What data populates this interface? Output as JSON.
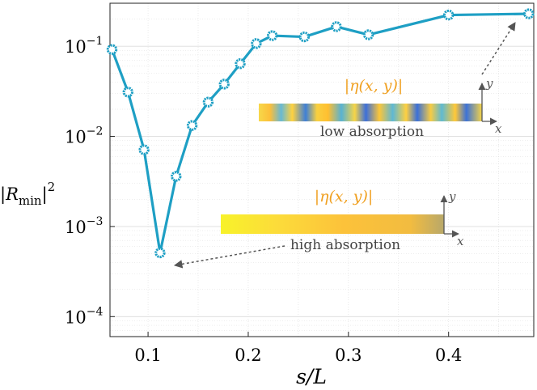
{
  "chart_data": {
    "type": "scatter",
    "xlabel": "s/L",
    "ylabel": "|R_min|^2",
    "xscale": "linear",
    "yscale": "log",
    "xlim": [
      0.062,
      0.485
    ],
    "ylim": [
      6e-05,
      0.3
    ],
    "grid": true,
    "x_ticks": [
      {
        "value": 0.1,
        "label": "0.1"
      },
      {
        "value": 0.2,
        "label": "0.2"
      },
      {
        "value": 0.3,
        "label": "0.3"
      },
      {
        "value": 0.4,
        "label": "0.4"
      }
    ],
    "y_ticks": [
      {
        "value": 0.1,
        "base": "10",
        "exp": "−1"
      },
      {
        "value": 0.01,
        "base": "10",
        "exp": "−2"
      },
      {
        "value": 0.001,
        "base": "10",
        "exp": "−3"
      },
      {
        "value": 0.0001,
        "base": "10",
        "exp": "−4"
      }
    ],
    "series": [
      {
        "color": "#1e9fc4",
        "marker": "circle",
        "x": [
          0.064,
          0.08,
          0.096,
          0.112,
          0.128,
          0.144,
          0.16,
          0.176,
          0.192,
          0.208,
          0.224,
          0.256,
          0.288,
          0.32,
          0.4,
          0.48
        ],
        "y": [
          0.092,
          0.031,
          0.0071,
          0.00051,
          0.0036,
          0.0132,
          0.024,
          0.038,
          0.064,
          0.107,
          0.131,
          0.127,
          0.165,
          0.134,
          0.222,
          0.229
        ]
      }
    ],
    "annotations": [
      {
        "text": "low absorption",
        "inset_title": "|η(x, y)|",
        "axis_x": "x",
        "axis_y": "y"
      },
      {
        "text": "high absorption",
        "inset_title": "|η(x, y)|",
        "axis_x": "x",
        "axis_y": "y"
      }
    ],
    "colors": {
      "line": "#1e9fc4",
      "inset_title": "#f0a020",
      "arrow": "#555555",
      "grid": "#dcdcdc"
    }
  }
}
